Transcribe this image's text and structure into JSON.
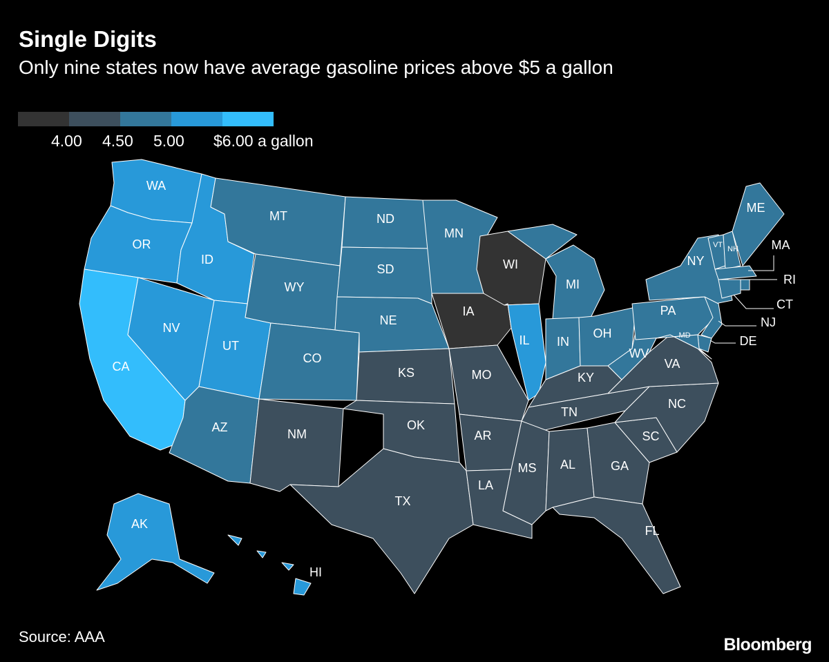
{
  "title": "Single Digits",
  "subtitle": "Only nine states now have average gasoline prices above $5 a gallon",
  "legend": {
    "colors": [
      "#333333",
      "#3d4f5d",
      "#33779b",
      "#2899d9",
      "#33bdfc"
    ],
    "labels": [
      "4.00",
      "4.50",
      "5.00",
      "$6.00 a gallon"
    ]
  },
  "source": "Source: AAA",
  "brand": "Bloomberg",
  "map_data": {
    "bins": [
      {
        "range": "below 4.00",
        "color": "#333333"
      },
      {
        "range": "4.00–4.50",
        "color": "#3d4f5d"
      },
      {
        "range": "4.50–5.00",
        "color": "#33779b"
      },
      {
        "range": "5.00–6.00",
        "color": "#2899d9"
      },
      {
        "range": "6.00 and above",
        "color": "#33bdfc"
      }
    ],
    "states": {
      "WA": 3,
      "OR": 3,
      "CA": 4,
      "NV": 3,
      "ID": 3,
      "UT": 3,
      "AZ": 2,
      "MT": 2,
      "WY": 2,
      "CO": 2,
      "NM": 1,
      "ND": 2,
      "SD": 2,
      "NE": 2,
      "KS": 1,
      "OK": 1,
      "TX": 1,
      "MN": 2,
      "IA": 0,
      "MO": 1,
      "AR": 1,
      "LA": 1,
      "WI": 0,
      "IL": 3,
      "MI": 2,
      "IN": 2,
      "OH": 2,
      "KY": 1,
      "TN": 1,
      "MS": 1,
      "AL": 1,
      "GA": 1,
      "FL": 1,
      "SC": 1,
      "NC": 1,
      "VA": 1,
      "WV": 2,
      "PA": 2,
      "NY": 2,
      "VT": 2,
      "NH": 2,
      "ME": 2,
      "MA": 2,
      "RI": 2,
      "CT": 2,
      "NJ": 2,
      "DE": 2,
      "MD": 2,
      "AK": 3,
      "HI": 3
    },
    "labels": [
      "WA",
      "OR",
      "CA",
      "NV",
      "ID",
      "UT",
      "AZ",
      "MT",
      "WY",
      "CO",
      "NM",
      "ND",
      "SD",
      "NE",
      "KS",
      "OK",
      "TX",
      "MN",
      "IA",
      "MO",
      "AR",
      "LA",
      "WI",
      "IL",
      "MI",
      "IN",
      "OH",
      "KY",
      "TN",
      "MS",
      "AL",
      "GA",
      "FL",
      "SC",
      "NC",
      "VA",
      "WV",
      "PA",
      "NY",
      "VT",
      "NH",
      "ME",
      "MA",
      "RI",
      "CT",
      "NJ",
      "DE",
      "MD",
      "AK",
      "HI"
    ]
  }
}
